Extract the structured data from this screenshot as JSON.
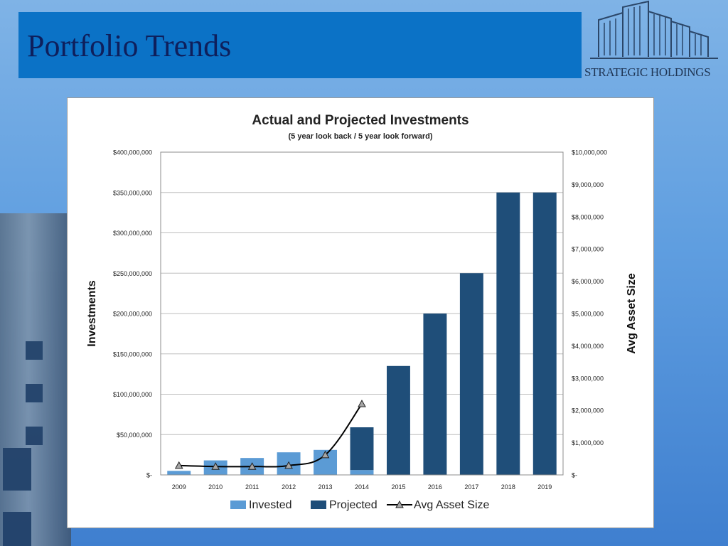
{
  "slide": {
    "title": "Portfolio Trends",
    "logo_text": "STRATEGIC HOLDINGS"
  },
  "colors": {
    "title_bar": "#0b72c6",
    "title_text": "#0e1f5c",
    "invested": "#5b9bd5",
    "projected": "#1f4e79",
    "avg_line": "#000000"
  },
  "chart_data": {
    "type": "bar",
    "title": "Actual and Projected Investments",
    "subtitle": "(5 year look back / 5 year look forward)",
    "ylabel": "Investments",
    "y2label": "Avg Asset Size",
    "categories": [
      "2009",
      "2010",
      "2011",
      "2012",
      "2013",
      "2014",
      "2015",
      "2016",
      "2017",
      "2018",
      "2019"
    ],
    "ylim": [
      0,
      400000000
    ],
    "y2lim": [
      0,
      10000000
    ],
    "y_ticks": [
      "$-",
      "$50,000,000",
      "$100,000,000",
      "$150,000,000",
      "$200,000,000",
      "$250,000,000",
      "$300,000,000",
      "$350,000,000",
      "$400,000,000"
    ],
    "y2_ticks": [
      "$-",
      "$1,000,000",
      "$2,000,000",
      "$3,000,000",
      "$4,000,000",
      "$5,000,000",
      "$6,000,000",
      "$7,000,000",
      "$8,000,000",
      "$9,000,000",
      "$10,000,000"
    ],
    "stacked": true,
    "grid": true,
    "legend_position": "bottom",
    "series": [
      {
        "name": "Invested",
        "axis": "left",
        "values": [
          5000000,
          18000000,
          21000000,
          28000000,
          31000000,
          6000000,
          0,
          0,
          0,
          0,
          0
        ]
      },
      {
        "name": "Projected",
        "axis": "left",
        "values": [
          0,
          0,
          0,
          0,
          0,
          53000000,
          135000000,
          200000000,
          250000000,
          350000000,
          350000000
        ]
      },
      {
        "name": "Avg Asset Size",
        "axis": "right",
        "type": "line",
        "marker": "triangle",
        "values": [
          290000,
          260000,
          260000,
          290000,
          620000,
          2200000,
          null,
          null,
          null,
          null,
          null
        ]
      }
    ]
  }
}
